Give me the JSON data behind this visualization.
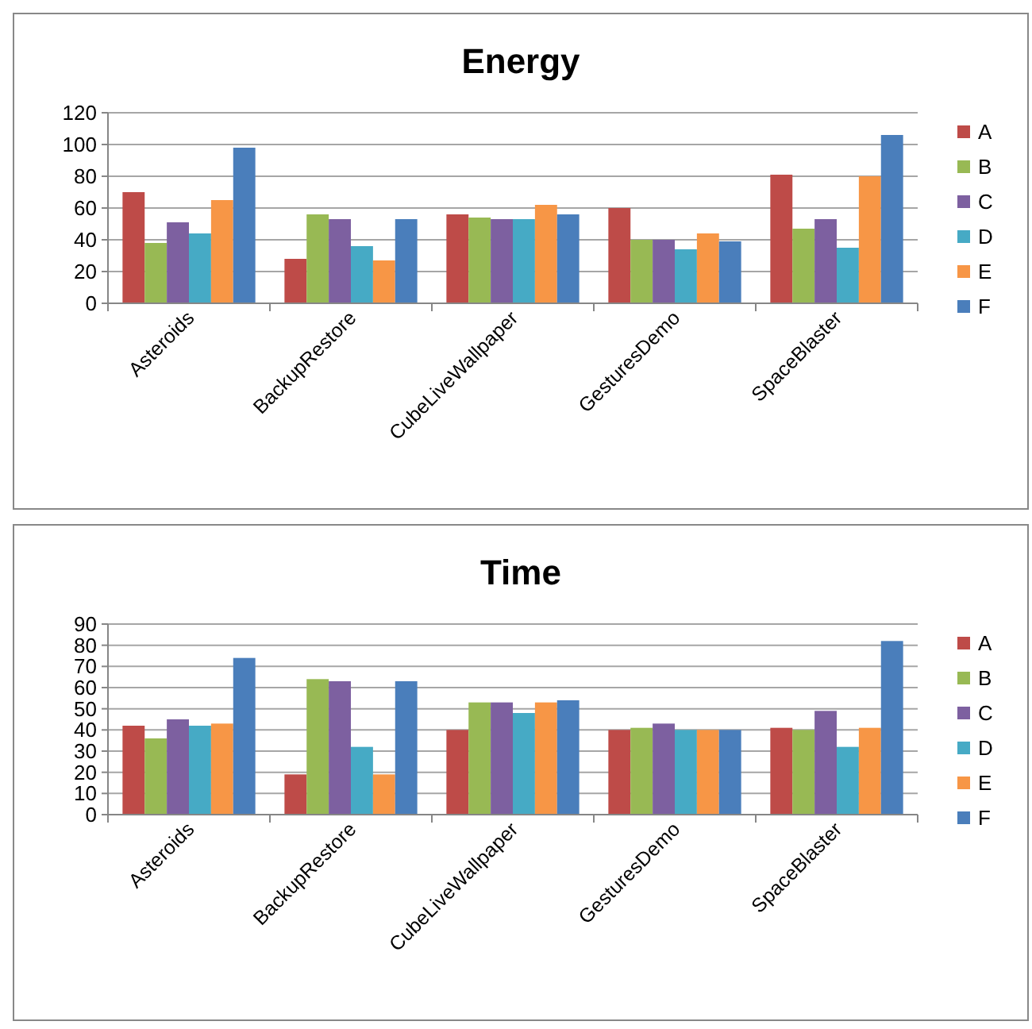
{
  "chart_data": [
    {
      "type": "bar",
      "title": "Energy",
      "categories": [
        "Asteroids",
        "BackupRestore",
        "CubeLiveWallpaper",
        "GesturesDemo",
        "SpaceBlaster"
      ],
      "series": [
        {
          "name": "A",
          "color": "#be4b48",
          "values": [
            70,
            28,
            56,
            60,
            81
          ]
        },
        {
          "name": "B",
          "color": "#98b954",
          "values": [
            38,
            56,
            54,
            40,
            47
          ]
        },
        {
          "name": "C",
          "color": "#7d60a0",
          "values": [
            51,
            53,
            53,
            40,
            53
          ]
        },
        {
          "name": "D",
          "color": "#46aac5",
          "values": [
            44,
            36,
            53,
            34,
            35
          ]
        },
        {
          "name": "E",
          "color": "#f79646",
          "values": [
            65,
            27,
            62,
            44,
            80
          ]
        },
        {
          "name": "F",
          "color": "#4a7ebb",
          "values": [
            98,
            53,
            56,
            39,
            106
          ]
        }
      ],
      "ylim": [
        0,
        120
      ],
      "yticks": [
        0,
        20,
        40,
        60,
        80,
        100,
        120
      ],
      "grid": "y",
      "legend": "right"
    },
    {
      "type": "bar",
      "title": "Time",
      "categories": [
        "Asteroids",
        "BackupRestore",
        "CubeLiveWallpaper",
        "GesturesDemo",
        "SpaceBlaster"
      ],
      "series": [
        {
          "name": "A",
          "color": "#be4b48",
          "values": [
            42,
            19,
            40,
            40,
            41
          ]
        },
        {
          "name": "B",
          "color": "#98b954",
          "values": [
            36,
            64,
            53,
            41,
            40
          ]
        },
        {
          "name": "C",
          "color": "#7d60a0",
          "values": [
            45,
            63,
            53,
            43,
            49
          ]
        },
        {
          "name": "D",
          "color": "#46aac5",
          "values": [
            42,
            32,
            48,
            40,
            32
          ]
        },
        {
          "name": "E",
          "color": "#f79646",
          "values": [
            43,
            19,
            53,
            40,
            41
          ]
        },
        {
          "name": "F",
          "color": "#4a7ebb",
          "values": [
            74,
            63,
            54,
            40,
            82
          ]
        }
      ],
      "ylim": [
        0,
        90
      ],
      "yticks": [
        0,
        10,
        20,
        30,
        40,
        50,
        60,
        70,
        80,
        90
      ],
      "grid": "y",
      "legend": "right"
    }
  ]
}
